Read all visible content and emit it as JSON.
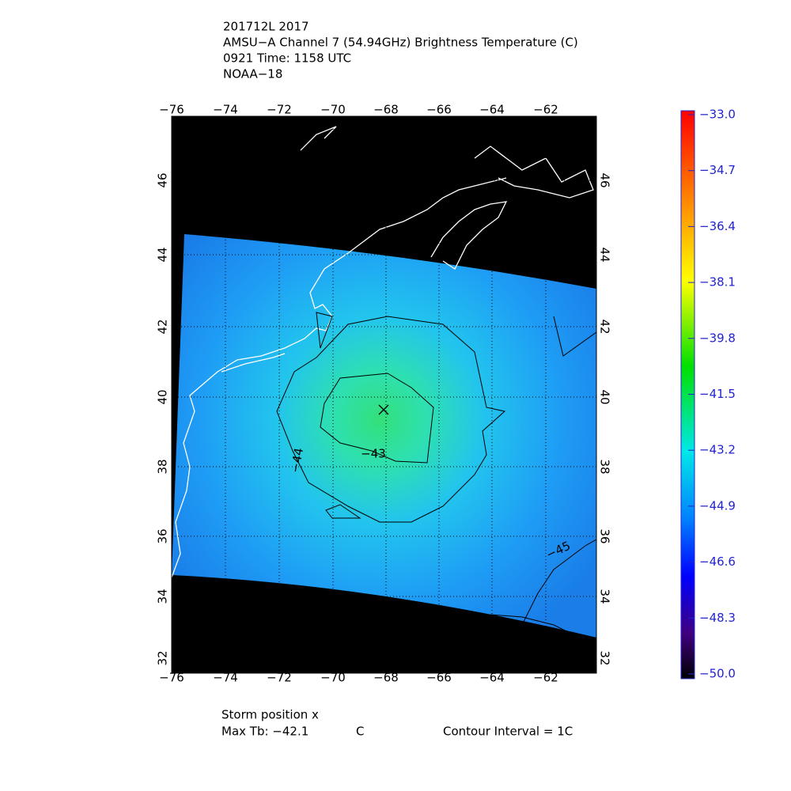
{
  "header": {
    "lines": [
      "201712L 2017",
      "AMSU−A Channel 7 (54.94GHz) Brightness Temperature (C)",
      "0921 Time: 1158 UTC",
      "NOAA−18"
    ]
  },
  "map": {
    "lon_ticks": [
      "−76",
      "−74",
      "−72",
      "−70",
      "−68",
      "−66",
      "−64",
      "−62"
    ],
    "lat_ticks": [
      "46",
      "44",
      "42",
      "40",
      "38",
      "36",
      "34",
      "32"
    ],
    "contour_labels": [
      "−43",
      "−44",
      "−45"
    ]
  },
  "colorbar": {
    "ticks": [
      "−33.0",
      "−34.7",
      "−36.4",
      "−38.1",
      "−39.8",
      "−41.5",
      "−43.2",
      "−44.9",
      "−46.6",
      "−48.3",
      "−50.0"
    ]
  },
  "footer": {
    "storm": "Storm position x",
    "max_tb": "Max Tb: −42.1",
    "unit": "C",
    "interval": "Contour Interval = 1C"
  }
}
